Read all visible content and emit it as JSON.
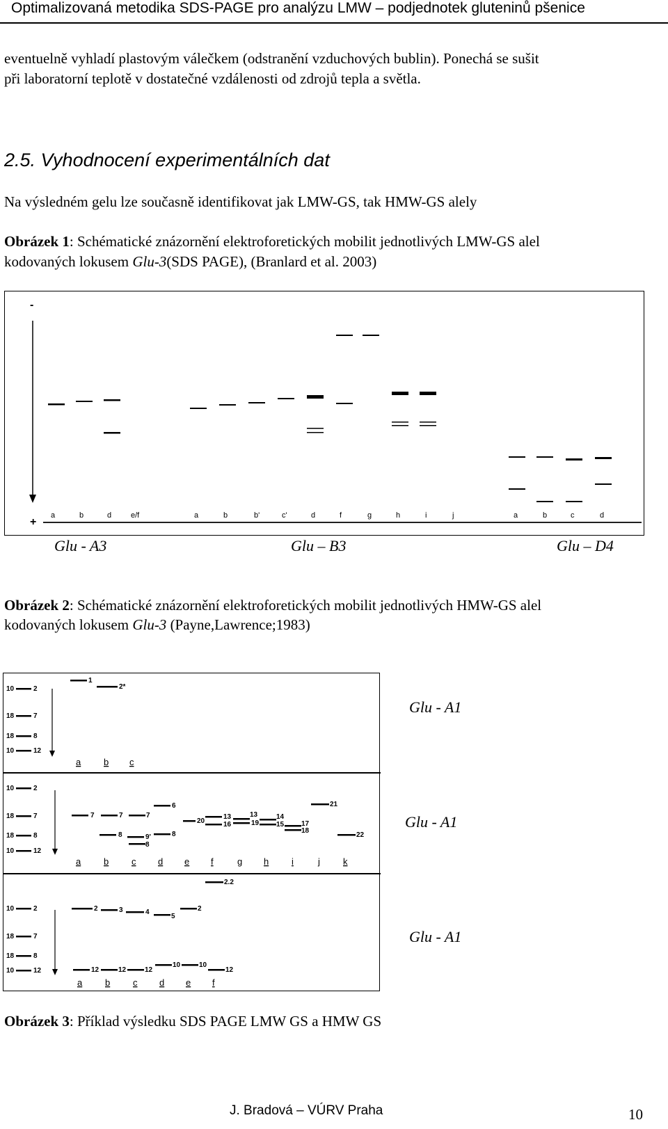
{
  "header": {
    "title": "Optimalizovaná metodika SDS-PAGE pro analýzu LMW – podjednotek gluteninů pšenice"
  },
  "intro": {
    "line1": "eventuelně vyhladí plastovým válečkem (odstranění vzduchových bublin). Ponechá se sušit",
    "line2": "při laboratorní teplotě v dostatečné vzdálenosti od zdrojů tepla a světla."
  },
  "section": {
    "heading": "2.5. Vyhodnocení experimentálních dat",
    "paragraph": "Na výsledném gelu lze současně identifikovat jak LMW-GS, tak HMW-GS alely"
  },
  "figure1": {
    "caption_label": "Obrázek 1",
    "caption_line1": ": Schématické znázornění elektroforetických mobilit jednotlivých LMW-GS alel",
    "caption_line2_a": "kodovaných lokusem ",
    "caption_line2_locus": "Glu-3",
    "caption_line2_b": "(SDS PAGE), (Branlard et al. 2003)",
    "minus_sign": "-",
    "plus_sign": "+",
    "lane_labels": [
      "a",
      "b",
      "d",
      "e/f",
      "a",
      "b",
      "b'",
      "c'",
      "d",
      "f",
      "g",
      "h",
      "i",
      "j",
      "a",
      "b",
      "c",
      "d"
    ],
    "locus_labels": [
      "Glu - A3",
      "Glu – B3",
      "Glu – D4"
    ]
  },
  "figure2": {
    "caption_label": "Obrázek 2",
    "caption_line1": ": Schématické znázornění elektroforetických mobilit jednotlivých HMW-GS alel",
    "caption_line2_a": "kodovaných lokusem ",
    "caption_line2_locus": "Glu-3",
    "caption_line2_b": " (Payne,Lawrence;1983)",
    "panel_labels": [
      "Glu -  A1",
      "Glu -  A1",
      "Glu -  A1"
    ],
    "panel1": {
      "reference": [
        "10",
        "2",
        "18",
        "7",
        "18",
        "8",
        "10",
        "12"
      ],
      "band_labels": [
        "1",
        "2*"
      ],
      "lanes": [
        "a",
        "b",
        "c"
      ]
    },
    "panel2": {
      "reference": [
        "10",
        "2",
        "18",
        "7",
        "18",
        "8",
        "10",
        "12"
      ],
      "band_labels": [
        "6",
        "7",
        "7",
        "7",
        "20",
        "13",
        "16",
        "13",
        "19",
        "14",
        "15",
        "17",
        "18",
        "21",
        "22",
        "8",
        "8",
        "8",
        "9'"
      ],
      "lanes": [
        "a",
        "b",
        "c",
        "d",
        "e",
        "f",
        "g",
        "h",
        "i",
        "j",
        "k"
      ]
    },
    "panel3": {
      "reference": [
        "10",
        "2",
        "18",
        "7",
        "18",
        "8",
        "10",
        "12"
      ],
      "band_labels": [
        "2.2",
        "2",
        "3",
        "4",
        "5",
        "2",
        "12",
        "12",
        "12",
        "10",
        "10",
        "12"
      ],
      "lanes": [
        "a",
        "b",
        "c",
        "d",
        "e",
        "f"
      ]
    }
  },
  "figure3": {
    "caption_label": "Obrázek 3",
    "caption_text": ": Příklad výsledku SDS PAGE  LMW GS a HMW GS"
  },
  "footer": {
    "author": "J. Bradová – VÚRV Praha",
    "page": "10"
  }
}
